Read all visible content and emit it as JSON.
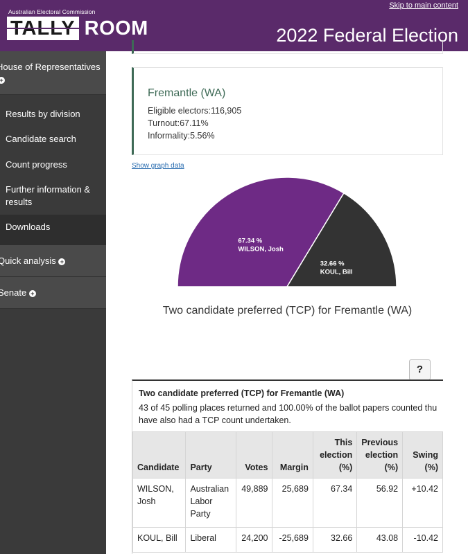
{
  "header": {
    "skip_link": "Skip to main content",
    "aec_label": "Australian Electoral Commission",
    "logo_tally": "TALLY",
    "logo_room": "ROOM",
    "election_title": "2022 Federal Election"
  },
  "sidebar": {
    "house": "House of Representatives",
    "items": [
      "Results by division",
      "Candidate search",
      "Count progress",
      "Further information & results",
      "Downloads"
    ],
    "quick_analysis": "Quick analysis",
    "senate": "Senate"
  },
  "division": {
    "name": "Fremantle (WA)",
    "eligible": "Eligible electors:116,905",
    "turnout": "Turnout:67.11%",
    "informality": "Informality:5.56%"
  },
  "graph_link": "Show graph data",
  "chart_data": {
    "type": "pie",
    "variant": "half-donut",
    "title": "Two candidate preferred (TCP) for Fremantle (WA)",
    "slices": [
      {
        "name": "WILSON, Josh",
        "value": 67.34,
        "label": "67.34 %",
        "color": "#6e2a85"
      },
      {
        "name": "KOUL, Bill",
        "value": 32.66,
        "label": "32.66 %",
        "color": "#333333"
      }
    ]
  },
  "help_label": "?",
  "table": {
    "title": "Two candidate preferred (TCP) for Fremantle (WA)",
    "subtitle": "43 of 45 polling places returned and 100.00% of the ballot papers counted thu have also had a TCP count undertaken.",
    "columns": [
      "Candidate",
      "Party",
      "Votes",
      "Margin",
      "This election (%)",
      "Previous election (%)",
      "Swing (%)"
    ],
    "rows": [
      {
        "candidate": "WILSON, Josh",
        "party": "Australian Labor Party",
        "votes": "49,889",
        "margin": "25,689",
        "this": "67.34",
        "prev": "56.92",
        "swing": "+10.42"
      },
      {
        "candidate": "KOUL, Bill",
        "party": "Liberal",
        "votes": "24,200",
        "margin": "-25,689",
        "this": "32.66",
        "prev": "43.08",
        "swing": "-10.42"
      }
    ]
  }
}
